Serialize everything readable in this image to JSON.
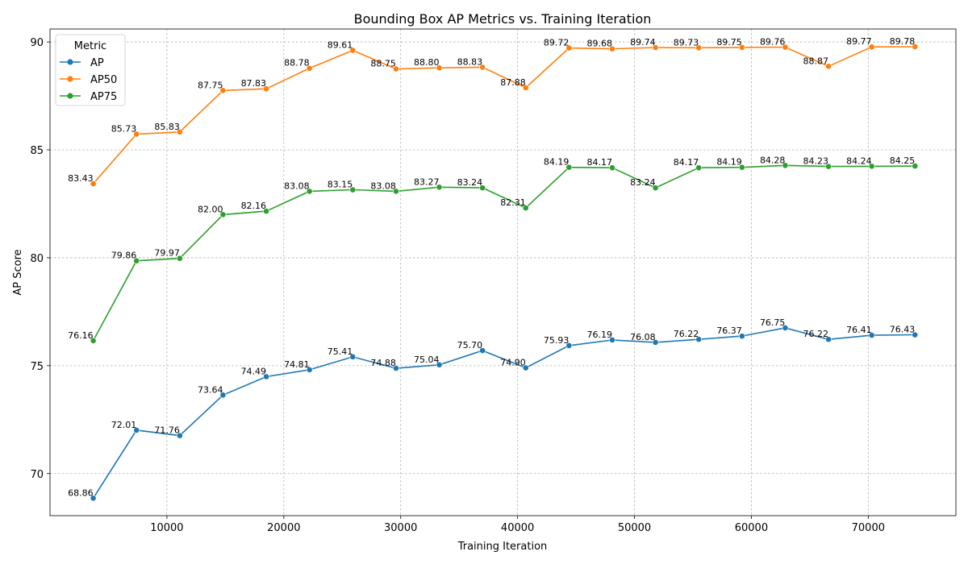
{
  "chart_data": {
    "type": "line",
    "title": "Bounding Box AP Metrics vs. Training Iteration",
    "xlabel": "Training Iteration",
    "ylabel": "AP Score",
    "xlim": [
      0,
      77500
    ],
    "ylim": [
      68.05,
      90.6
    ],
    "xticks": [
      10000,
      20000,
      30000,
      40000,
      50000,
      60000,
      70000
    ],
    "yticks": [
      70,
      75,
      80,
      85,
      90
    ],
    "grid": true,
    "legend": {
      "title": "Metric",
      "placement": "upper-left"
    },
    "x": [
      3700,
      7400,
      11100,
      14800,
      18500,
      22200,
      25900,
      29600,
      33300,
      37000,
      40700,
      44400,
      48100,
      51800,
      55500,
      59200,
      62900,
      66600,
      70300,
      74000
    ],
    "series": [
      {
        "name": "AP",
        "color": "#1f77b4",
        "values": [
          68.86,
          72.01,
          71.76,
          73.64,
          74.49,
          74.81,
          75.41,
          74.88,
          75.04,
          75.7,
          74.9,
          75.93,
          76.19,
          76.08,
          76.22,
          76.37,
          76.75,
          76.22,
          76.41,
          76.43
        ],
        "labels": [
          "68.86",
          "72.01",
          "71.76",
          "73.64",
          "74.49",
          "74.81",
          "75.41",
          "74.88",
          "75.04",
          "75.70",
          "74.90",
          "75.93",
          "76.19",
          "76.08",
          "76.22",
          "76.37",
          "76.75",
          "76.22",
          "76.41",
          "76.43"
        ]
      },
      {
        "name": "AP50",
        "color": "#ff7f0e",
        "values": [
          83.43,
          85.73,
          85.83,
          87.75,
          87.83,
          88.78,
          89.61,
          88.75,
          88.8,
          88.83,
          87.88,
          89.72,
          89.68,
          89.74,
          89.73,
          89.75,
          89.76,
          88.87,
          89.77,
          89.78
        ],
        "labels": [
          "83.43",
          "85.73",
          "85.83",
          "87.75",
          "87.83",
          "88.78",
          "89.61",
          "88.75",
          "88.80",
          "88.83",
          "87.88",
          "89.72",
          "89.68",
          "89.74",
          "89.73",
          "89.75",
          "89.76",
          "88.87",
          "89.77",
          "89.78"
        ]
      },
      {
        "name": "AP75",
        "color": "#2ca02c",
        "values": [
          76.16,
          79.86,
          79.97,
          82.0,
          82.16,
          83.08,
          83.15,
          83.08,
          83.27,
          83.24,
          82.31,
          84.19,
          84.17,
          83.24,
          84.17,
          84.19,
          84.28,
          84.23,
          84.24,
          84.25
        ],
        "labels": [
          "76.16",
          "79.86",
          "79.97",
          "82.00",
          "82.16",
          "83.08",
          "83.15",
          "83.08",
          "83.27",
          "83.24",
          "82.31",
          "84.19",
          "84.17",
          "83.24",
          "84.17",
          "84.19",
          "84.28",
          "84.23",
          "84.24",
          "84.25"
        ]
      }
    ]
  }
}
